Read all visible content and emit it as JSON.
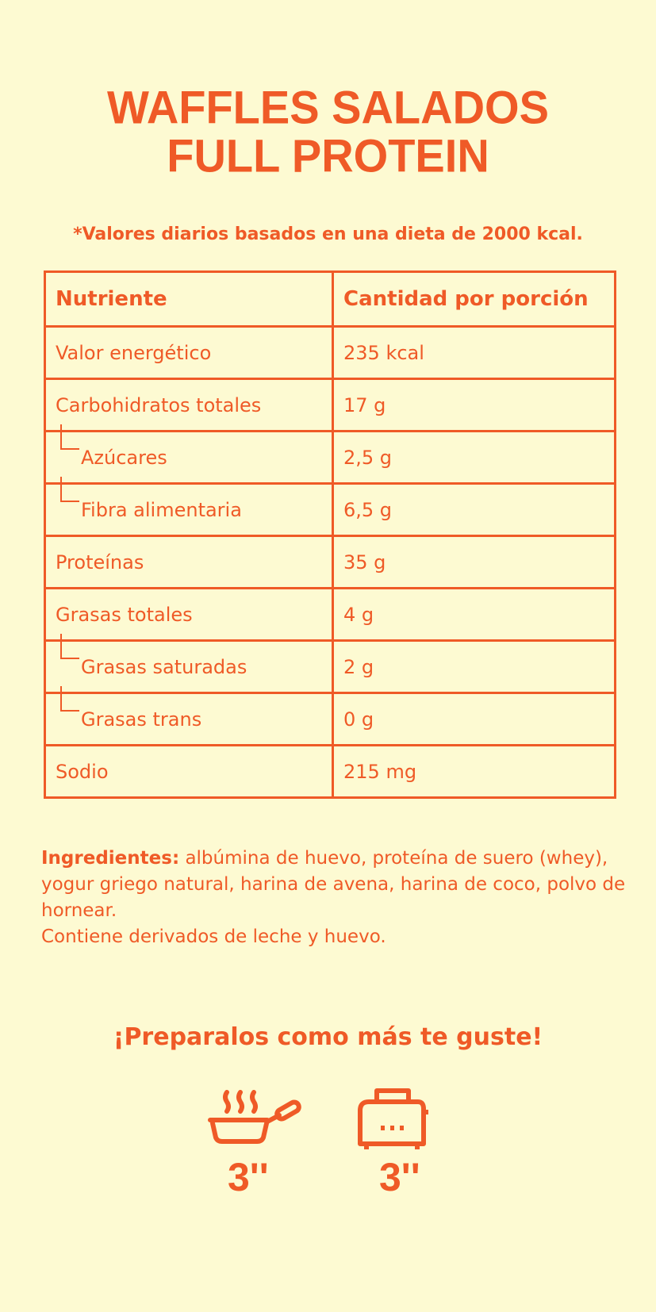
{
  "title": {
    "line1": "WAFFLES SALADOS",
    "line2": "FULL PROTEIN"
  },
  "note": "*Valores diarios basados en una dieta de 2000 kcal.",
  "table": {
    "headers": [
      "Nutriente",
      "Cantidad por porción"
    ],
    "rows": [
      {
        "name": "Valor energético",
        "value": "235 kcal"
      },
      {
        "name": "Carbohidratos totales",
        "value": "17 g"
      },
      {
        "name": "Azúcares",
        "value": "2,5 g"
      },
      {
        "name": "Fibra alimentaria",
        "value": "6,5 g"
      },
      {
        "name": "Proteínas",
        "value": "35 g"
      },
      {
        "name": "Grasas totales",
        "value": "4 g"
      },
      {
        "name": "Grasas saturadas",
        "value": "2 g"
      },
      {
        "name": "Grasas trans",
        "value": "0 g"
      },
      {
        "name": "Sodio",
        "value": "215 mg"
      }
    ]
  },
  "ingredients": {
    "label": "Ingredientes:",
    "text": " albúmina de huevo, proteína de suero (whey), yogur griego natural, harina de avena, harina de coco, polvo de hornear.",
    "allergens": "Contiene derivados de leche y huevo."
  },
  "prep": {
    "heading": "¡Preparalos como más te guste!",
    "methods": [
      {
        "icon": "frying-pan-icon",
        "time": "3''"
      },
      {
        "icon": "toaster-icon",
        "time": "3''"
      }
    ]
  },
  "colors": {
    "background": "#fdfad2",
    "accent": "#ef5a27"
  }
}
